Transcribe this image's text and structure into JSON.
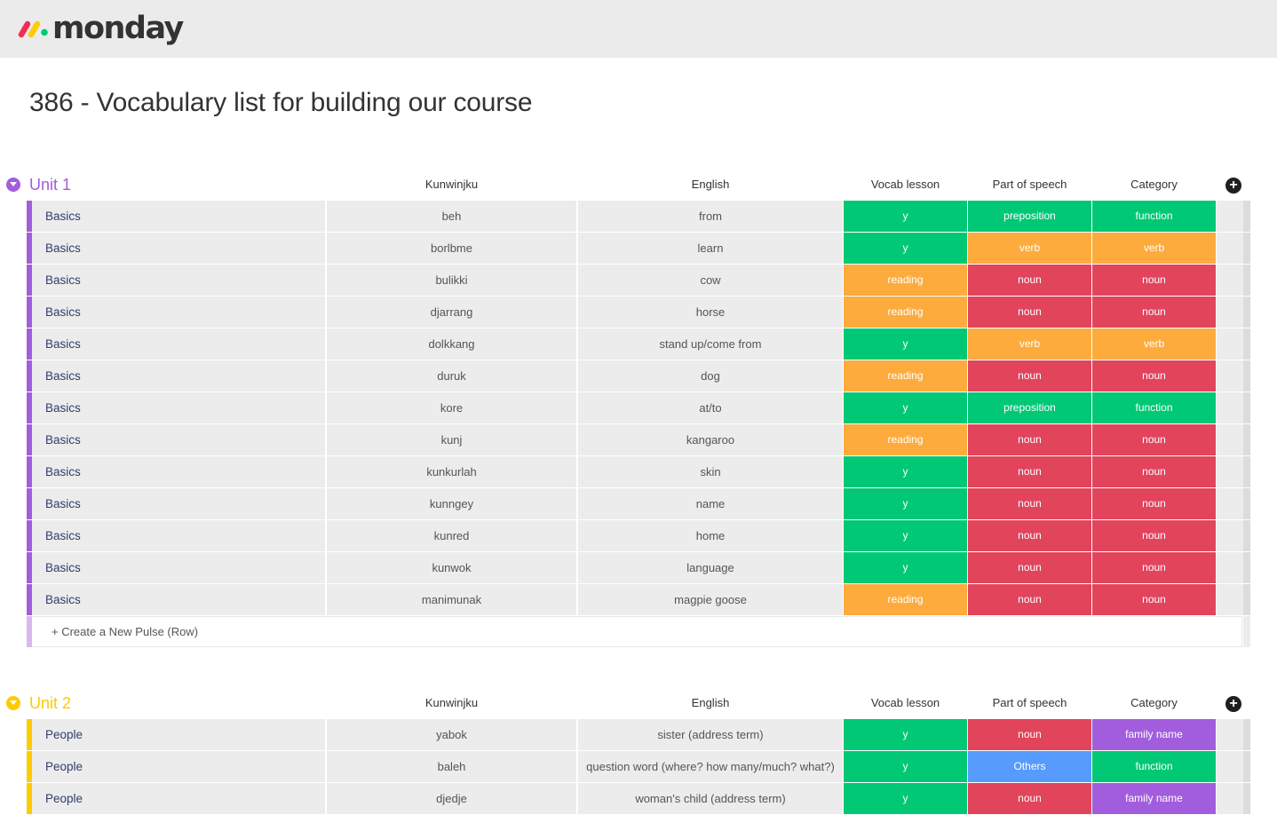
{
  "app": {
    "logo_text": "monday"
  },
  "board": {
    "title": "386 - Vocabulary list for building our course"
  },
  "colors": {
    "green": "#00c875",
    "orange": "#fdab3d",
    "red": "#e2445c",
    "blue": "#579bfc",
    "purple": "#a25ddc",
    "unit1": "#a25ddc",
    "unit1_light": "#d9b8f0",
    "unit2": "#ffcb00",
    "unit2_light": "#ffe27a"
  },
  "groups": [
    {
      "title": "Unit 1",
      "color": "#a25ddc",
      "light": "#d9b8f0",
      "columns": {
        "kunwinjku": "Kunwinjku",
        "english": "English",
        "vocab": "Vocab lesson",
        "pos": "Part of speech",
        "category": "Category"
      },
      "new_row_label": "+ Create a New Pulse (Row)",
      "rows": [
        {
          "name": "Basics",
          "kunwinjku": "beh",
          "english": "from",
          "vocab": "y",
          "vocab_color": "#00c875",
          "pos": "preposition",
          "pos_color": "#00c875",
          "category": "function",
          "category_color": "#00c875"
        },
        {
          "name": "Basics",
          "kunwinjku": "borlbme",
          "english": "learn",
          "vocab": "y",
          "vocab_color": "#00c875",
          "pos": "verb",
          "pos_color": "#fdab3d",
          "category": "verb",
          "category_color": "#fdab3d"
        },
        {
          "name": "Basics",
          "kunwinjku": "bulikki",
          "english": "cow",
          "vocab": "reading",
          "vocab_color": "#fdab3d",
          "pos": "noun",
          "pos_color": "#e2445c",
          "category": "noun",
          "category_color": "#e2445c"
        },
        {
          "name": "Basics",
          "kunwinjku": "djarrang",
          "english": "horse",
          "vocab": "reading",
          "vocab_color": "#fdab3d",
          "pos": "noun",
          "pos_color": "#e2445c",
          "category": "noun",
          "category_color": "#e2445c"
        },
        {
          "name": "Basics",
          "kunwinjku": "dolkkang",
          "english": "stand up/come from",
          "vocab": "y",
          "vocab_color": "#00c875",
          "pos": "verb",
          "pos_color": "#fdab3d",
          "category": "verb",
          "category_color": "#fdab3d"
        },
        {
          "name": "Basics",
          "kunwinjku": "duruk",
          "english": "dog",
          "vocab": "reading",
          "vocab_color": "#fdab3d",
          "pos": "noun",
          "pos_color": "#e2445c",
          "category": "noun",
          "category_color": "#e2445c"
        },
        {
          "name": "Basics",
          "kunwinjku": "kore",
          "english": "at/to",
          "vocab": "y",
          "vocab_color": "#00c875",
          "pos": "preposition",
          "pos_color": "#00c875",
          "category": "function",
          "category_color": "#00c875"
        },
        {
          "name": "Basics",
          "kunwinjku": "kunj",
          "english": "kangaroo",
          "vocab": "reading",
          "vocab_color": "#fdab3d",
          "pos": "noun",
          "pos_color": "#e2445c",
          "category": "noun",
          "category_color": "#e2445c"
        },
        {
          "name": "Basics",
          "kunwinjku": "kunkurlah",
          "english": "skin",
          "vocab": "y",
          "vocab_color": "#00c875",
          "pos": "noun",
          "pos_color": "#e2445c",
          "category": "noun",
          "category_color": "#e2445c"
        },
        {
          "name": "Basics",
          "kunwinjku": "kunngey",
          "english": "name",
          "vocab": "y",
          "vocab_color": "#00c875",
          "pos": "noun",
          "pos_color": "#e2445c",
          "category": "noun",
          "category_color": "#e2445c"
        },
        {
          "name": "Basics",
          "kunwinjku": "kunred",
          "english": "home",
          "vocab": "y",
          "vocab_color": "#00c875",
          "pos": "noun",
          "pos_color": "#e2445c",
          "category": "noun",
          "category_color": "#e2445c"
        },
        {
          "name": "Basics",
          "kunwinjku": "kunwok",
          "english": "language",
          "vocab": "y",
          "vocab_color": "#00c875",
          "pos": "noun",
          "pos_color": "#e2445c",
          "category": "noun",
          "category_color": "#e2445c"
        },
        {
          "name": "Basics",
          "kunwinjku": "manimunak",
          "english": "magpie goose",
          "vocab": "reading",
          "vocab_color": "#fdab3d",
          "pos": "noun",
          "pos_color": "#e2445c",
          "category": "noun",
          "category_color": "#e2445c"
        }
      ]
    },
    {
      "title": "Unit 2",
      "color": "#ffcb00",
      "light": "#ffe27a",
      "columns": {
        "kunwinjku": "Kunwinjku",
        "english": "English",
        "vocab": "Vocab lesson",
        "pos": "Part of speech",
        "category": "Category"
      },
      "new_row_label": "",
      "rows": [
        {
          "name": "People",
          "kunwinjku": "yabok",
          "english": "sister (address term)",
          "vocab": "y",
          "vocab_color": "#00c875",
          "pos": "noun",
          "pos_color": "#e2445c",
          "category": "family name",
          "category_color": "#a25ddc"
        },
        {
          "name": "People",
          "kunwinjku": "baleh",
          "english": "question word (where? how many/much? what?)",
          "vocab": "y",
          "vocab_color": "#00c875",
          "pos": "Others",
          "pos_color": "#579bfc",
          "category": "function",
          "category_color": "#00c875"
        },
        {
          "name": "People",
          "kunwinjku": "djedje",
          "english": "woman's child (address term)",
          "vocab": "y",
          "vocab_color": "#00c875",
          "pos": "noun",
          "pos_color": "#e2445c",
          "category": "family name",
          "category_color": "#a25ddc"
        }
      ]
    }
  ]
}
